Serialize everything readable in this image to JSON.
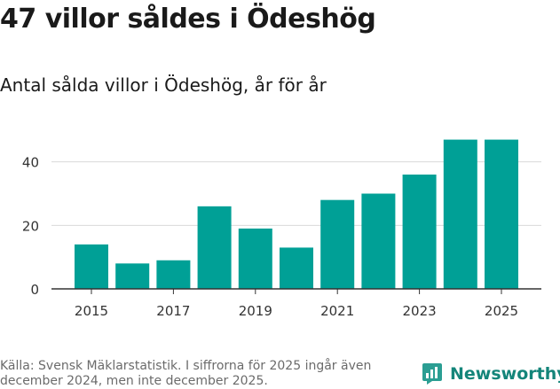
{
  "title": "47 villor såldes i Ödeshög",
  "subtitle": "Antal sålda villor i Ödeshög, år för år",
  "source": "Källa: Svensk Mäklarstatistik. I siffrorna för 2025 ingår även december 2024, men inte december 2025.",
  "brand": {
    "name": "Newsworthy",
    "icon": "newsworthy-logo-icon"
  },
  "colors": {
    "bar": "#00a096",
    "grid": "#d9d9d9",
    "axis": "#333333",
    "brand": "#14857a"
  },
  "chart_data": {
    "type": "bar",
    "categories": [
      "2015",
      "2016",
      "2017",
      "2018",
      "2019",
      "2020",
      "2021",
      "2022",
      "2023",
      "2024",
      "2025"
    ],
    "values": [
      14,
      8,
      9,
      26,
      19,
      13,
      28,
      30,
      36,
      47,
      47
    ],
    "x_tick_labels": [
      "2015",
      "2017",
      "2019",
      "2021",
      "2023",
      "2025"
    ],
    "y_ticks": [
      0,
      20,
      40
    ],
    "ylim": [
      0,
      48
    ],
    "xlabel": "",
    "ylabel": "",
    "grid": true
  }
}
